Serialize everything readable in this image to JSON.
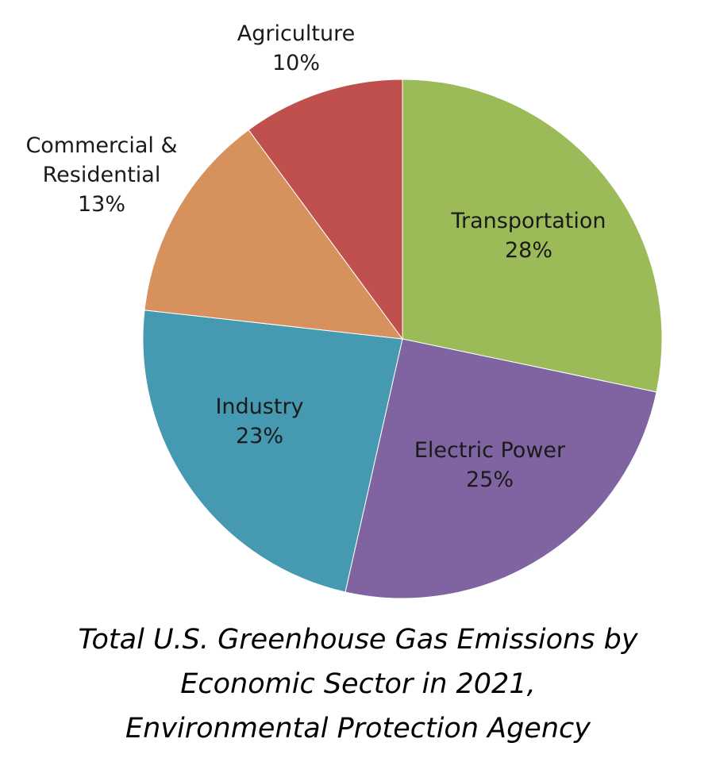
{
  "chart_data": {
    "type": "pie",
    "title": [
      "Total U.S. Greenhouse Gas Emissions by",
      "Economic Sector in 2021,",
      "Environmental Protection Agency"
    ],
    "slices": [
      {
        "name": "Transportation",
        "value": 28,
        "label": "28%",
        "color": "#9bbb59"
      },
      {
        "name": "Electric Power",
        "value": 25,
        "label": "25%",
        "color": "#8064a2"
      },
      {
        "name": "Industry",
        "value": 23,
        "label": "23%",
        "color": "#4599b1"
      },
      {
        "name": "Commercial & Residential",
        "name_lines": [
          "Commercial &",
          "Residential"
        ],
        "value": 13,
        "label": "13%",
        "color": "#d7915d"
      },
      {
        "name": "Agriculture",
        "value": 10,
        "label": "10%",
        "color": "#c0504d"
      }
    ]
  }
}
